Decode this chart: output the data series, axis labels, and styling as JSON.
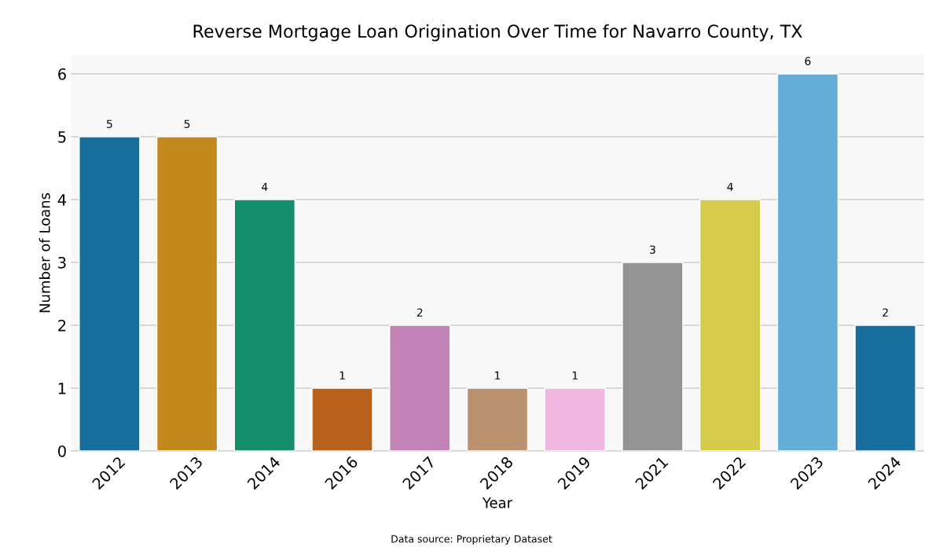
{
  "chart_data": {
    "type": "bar",
    "title": "Reverse Mortgage Loan Origination Over Time for Navarro County, TX",
    "xlabel": "Year",
    "ylabel": "Number of Loans",
    "categories": [
      "2012",
      "2013",
      "2014",
      "2016",
      "2017",
      "2018",
      "2019",
      "2021",
      "2022",
      "2023",
      "2024"
    ],
    "values": [
      5,
      5,
      4,
      1,
      2,
      1,
      1,
      3,
      4,
      6,
      2
    ],
    "colors": [
      "#176d9c",
      "#c2891f",
      "#168e6b",
      "#b8611d",
      "#c283b6",
      "#bb9270",
      "#f0b8e0",
      "#949494",
      "#d6cb4a",
      "#64aed8",
      "#176d9c"
    ],
    "ylim": [
      0,
      6.3
    ],
    "yticks": [
      0,
      1,
      2,
      3,
      4,
      5,
      6
    ],
    "grid": "y",
    "data_labels": true,
    "annotations": [
      "Data source: Proprietary Dataset"
    ]
  }
}
